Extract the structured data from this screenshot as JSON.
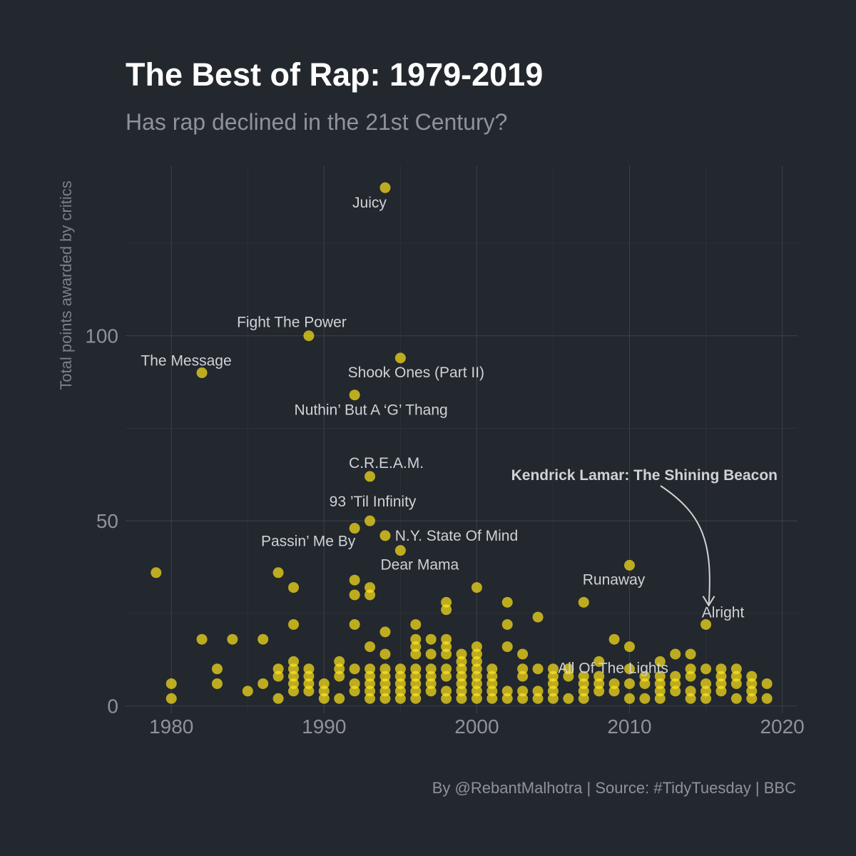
{
  "chart_data": {
    "type": "scatter",
    "title": "The Best of Rap: 1979-2019",
    "subtitle": "Has rap declined in the 21st Century?",
    "xlabel": "",
    "ylabel": "Total points awarded by critics",
    "caption": "By @RebantMalhotra | Source: #TidyTuesday | BBC",
    "xlim": [
      1977,
      2021
    ],
    "ylim": [
      -2,
      146
    ],
    "x_ticks": [
      1980,
      1990,
      2000,
      2010,
      2020
    ],
    "y_ticks": [
      0,
      50,
      100
    ],
    "grid": true,
    "point_color": "#ffe61a",
    "background": "#23272e",
    "labels": [
      {
        "text": "Juicy",
        "x": 1994,
        "y": 140
      },
      {
        "text": "Fight The Power",
        "x": 1989,
        "y": 100
      },
      {
        "text": "The Message",
        "x": 1982,
        "y": 90
      },
      {
        "text": "Shook Ones (Part II)",
        "x": 1995,
        "y": 94
      },
      {
        "text": "Nuthin’ But A ‘G’ Thang",
        "x": 1992,
        "y": 84
      },
      {
        "text": "C.R.E.A.M.",
        "x": 1993,
        "y": 62
      },
      {
        "text": "93 ’Til Infinity",
        "x": 1993,
        "y": 50
      },
      {
        "text": "N.Y. State Of Mind",
        "x": 1994,
        "y": 46
      },
      {
        "text": "Passin’ Me By",
        "x": 1992,
        "y": 48
      },
      {
        "text": "Dear Mama",
        "x": 1995,
        "y": 42
      },
      {
        "text": "Runaway",
        "x": 2010,
        "y": 38
      },
      {
        "text": "Alright",
        "x": 2015,
        "y": 22
      },
      {
        "text": "All Of The Lights",
        "x": 2010,
        "y": 10
      }
    ],
    "annotation": {
      "text": "Kendrick Lamar: The Shining Beacon",
      "target_x": 2015,
      "target_y": 26
    },
    "points": [
      [
        1979,
        36
      ],
      [
        1980,
        6
      ],
      [
        1980,
        2
      ],
      [
        1982,
        90
      ],
      [
        1982,
        18
      ],
      [
        1983,
        10
      ],
      [
        1983,
        6
      ],
      [
        1984,
        18
      ],
      [
        1985,
        4
      ],
      [
        1986,
        18
      ],
      [
        1986,
        6
      ],
      [
        1987,
        36
      ],
      [
        1987,
        10
      ],
      [
        1987,
        8
      ],
      [
        1987,
        2
      ],
      [
        1988,
        32
      ],
      [
        1988,
        22
      ],
      [
        1988,
        12
      ],
      [
        1988,
        10
      ],
      [
        1988,
        8
      ],
      [
        1988,
        6
      ],
      [
        1988,
        4
      ],
      [
        1989,
        100
      ],
      [
        1989,
        10
      ],
      [
        1989,
        8
      ],
      [
        1989,
        6
      ],
      [
        1989,
        4
      ],
      [
        1990,
        6
      ],
      [
        1990,
        4
      ],
      [
        1990,
        2
      ],
      [
        1991,
        12
      ],
      [
        1991,
        10
      ],
      [
        1991,
        8
      ],
      [
        1991,
        2
      ],
      [
        1992,
        84
      ],
      [
        1992,
        48
      ],
      [
        1992,
        34
      ],
      [
        1992,
        30
      ],
      [
        1992,
        22
      ],
      [
        1992,
        10
      ],
      [
        1992,
        6
      ],
      [
        1992,
        4
      ],
      [
        1993,
        62
      ],
      [
        1993,
        50
      ],
      [
        1993,
        32
      ],
      [
        1993,
        30
      ],
      [
        1993,
        16
      ],
      [
        1993,
        10
      ],
      [
        1993,
        8
      ],
      [
        1993,
        6
      ],
      [
        1993,
        4
      ],
      [
        1993,
        2
      ],
      [
        1994,
        140
      ],
      [
        1994,
        46
      ],
      [
        1994,
        20
      ],
      [
        1994,
        14
      ],
      [
        1994,
        10
      ],
      [
        1994,
        8
      ],
      [
        1994,
        6
      ],
      [
        1994,
        4
      ],
      [
        1994,
        2
      ],
      [
        1995,
        94
      ],
      [
        1995,
        42
      ],
      [
        1995,
        10
      ],
      [
        1995,
        8
      ],
      [
        1995,
        6
      ],
      [
        1995,
        4
      ],
      [
        1995,
        2
      ],
      [
        1996,
        22
      ],
      [
        1996,
        18
      ],
      [
        1996,
        16
      ],
      [
        1996,
        14
      ],
      [
        1996,
        10
      ],
      [
        1996,
        8
      ],
      [
        1996,
        6
      ],
      [
        1996,
        4
      ],
      [
        1996,
        2
      ],
      [
        1997,
        18
      ],
      [
        1997,
        14
      ],
      [
        1997,
        10
      ],
      [
        1997,
        8
      ],
      [
        1997,
        6
      ],
      [
        1997,
        4
      ],
      [
        1998,
        28
      ],
      [
        1998,
        26
      ],
      [
        1998,
        18
      ],
      [
        1998,
        16
      ],
      [
        1998,
        14
      ],
      [
        1998,
        10
      ],
      [
        1998,
        8
      ],
      [
        1998,
        4
      ],
      [
        1998,
        2
      ],
      [
        1999,
        14
      ],
      [
        1999,
        12
      ],
      [
        1999,
        10
      ],
      [
        1999,
        8
      ],
      [
        1999,
        6
      ],
      [
        1999,
        4
      ],
      [
        1999,
        2
      ],
      [
        2000,
        32
      ],
      [
        2000,
        16
      ],
      [
        2000,
        14
      ],
      [
        2000,
        12
      ],
      [
        2000,
        10
      ],
      [
        2000,
        8
      ],
      [
        2000,
        6
      ],
      [
        2000,
        4
      ],
      [
        2000,
        2
      ],
      [
        2001,
        10
      ],
      [
        2001,
        8
      ],
      [
        2001,
        6
      ],
      [
        2001,
        4
      ],
      [
        2001,
        2
      ],
      [
        2002,
        28
      ],
      [
        2002,
        22
      ],
      [
        2002,
        16
      ],
      [
        2002,
        4
      ],
      [
        2002,
        2
      ],
      [
        2003,
        14
      ],
      [
        2003,
        10
      ],
      [
        2003,
        8
      ],
      [
        2003,
        4
      ],
      [
        2003,
        2
      ],
      [
        2004,
        24
      ],
      [
        2004,
        10
      ],
      [
        2004,
        4
      ],
      [
        2004,
        2
      ],
      [
        2005,
        10
      ],
      [
        2005,
        8
      ],
      [
        2005,
        6
      ],
      [
        2005,
        4
      ],
      [
        2005,
        2
      ],
      [
        2006,
        10
      ],
      [
        2006,
        8
      ],
      [
        2006,
        2
      ],
      [
        2007,
        28
      ],
      [
        2007,
        8
      ],
      [
        2007,
        6
      ],
      [
        2007,
        4
      ],
      [
        2007,
        2
      ],
      [
        2008,
        12
      ],
      [
        2008,
        8
      ],
      [
        2008,
        6
      ],
      [
        2008,
        4
      ],
      [
        2009,
        18
      ],
      [
        2009,
        6
      ],
      [
        2009,
        4
      ],
      [
        2010,
        38
      ],
      [
        2010,
        16
      ],
      [
        2010,
        10
      ],
      [
        2010,
        6
      ],
      [
        2010,
        2
      ],
      [
        2011,
        8
      ],
      [
        2011,
        6
      ],
      [
        2011,
        2
      ],
      [
        2012,
        12
      ],
      [
        2012,
        8
      ],
      [
        2012,
        6
      ],
      [
        2012,
        4
      ],
      [
        2012,
        2
      ],
      [
        2013,
        14
      ],
      [
        2013,
        8
      ],
      [
        2013,
        6
      ],
      [
        2013,
        4
      ],
      [
        2014,
        14
      ],
      [
        2014,
        10
      ],
      [
        2014,
        8
      ],
      [
        2014,
        4
      ],
      [
        2014,
        2
      ],
      [
        2015,
        22
      ],
      [
        2015,
        10
      ],
      [
        2015,
        6
      ],
      [
        2015,
        4
      ],
      [
        2015,
        2
      ],
      [
        2016,
        10
      ],
      [
        2016,
        8
      ],
      [
        2016,
        6
      ],
      [
        2016,
        4
      ],
      [
        2017,
        10
      ],
      [
        2017,
        8
      ],
      [
        2017,
        6
      ],
      [
        2017,
        2
      ],
      [
        2018,
        8
      ],
      [
        2018,
        6
      ],
      [
        2018,
        4
      ],
      [
        2018,
        2
      ],
      [
        2019,
        6
      ],
      [
        2019,
        2
      ]
    ]
  }
}
